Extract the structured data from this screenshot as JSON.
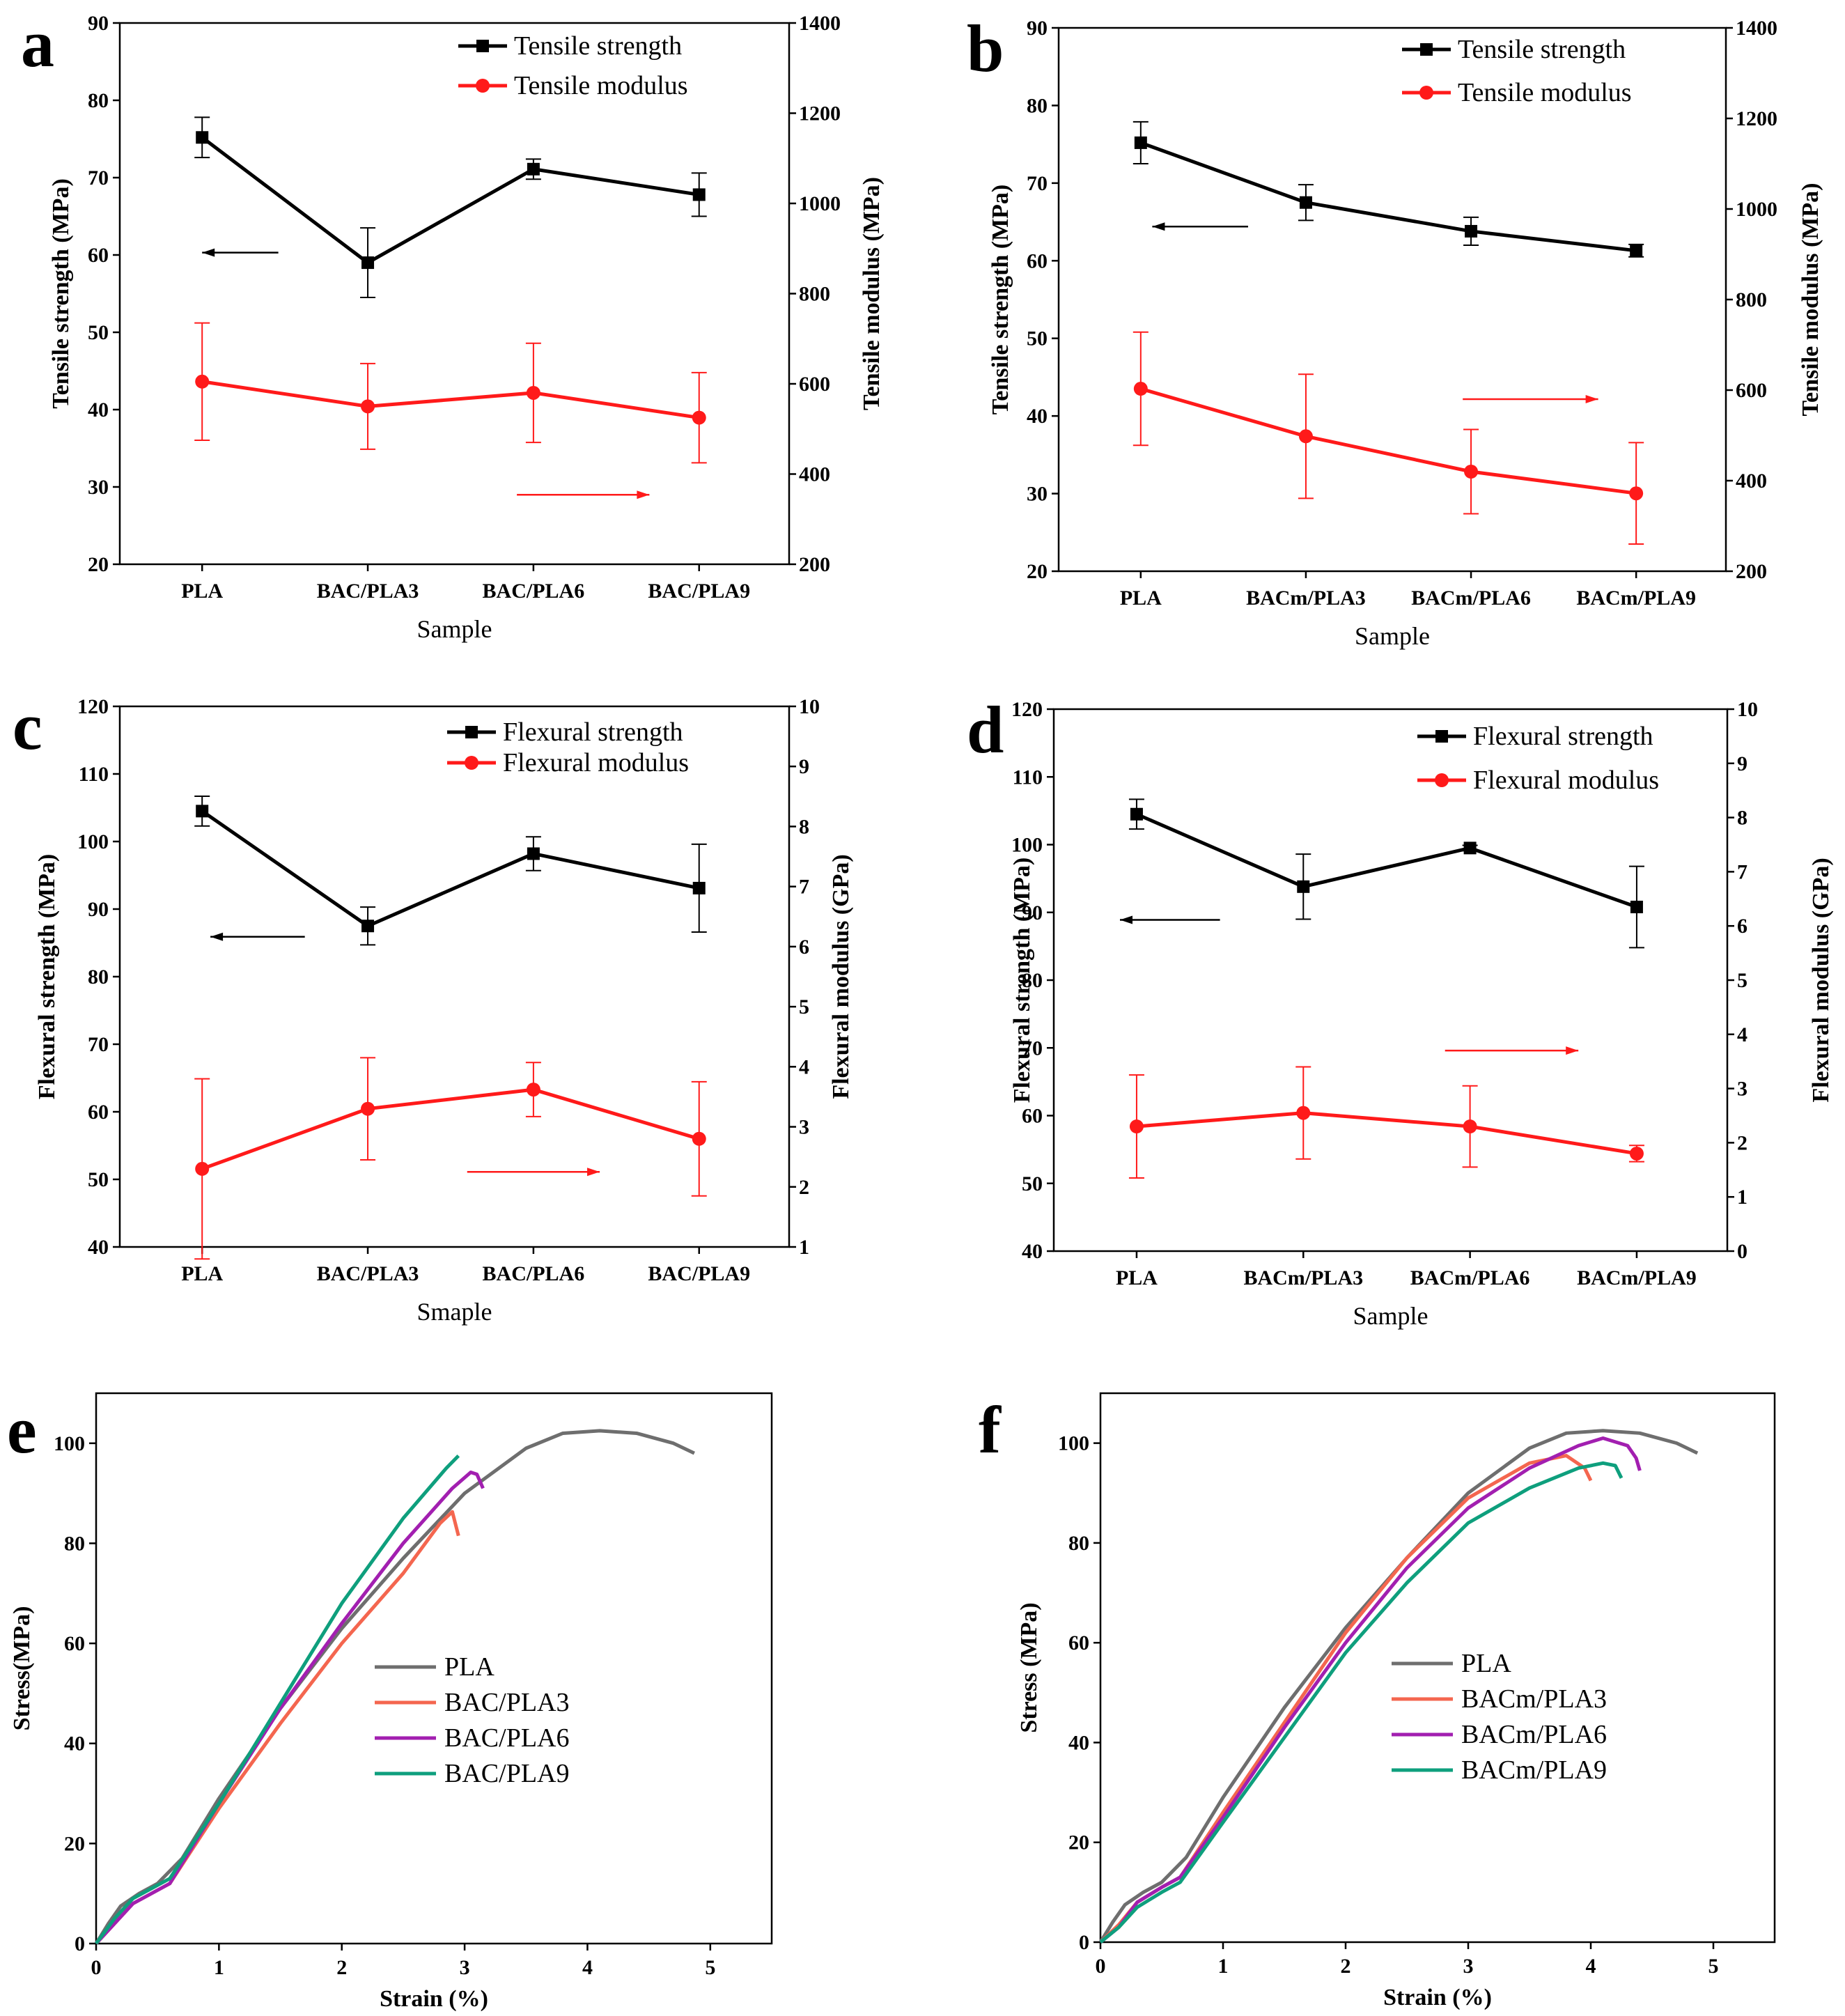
{
  "colors": {
    "black": "#000000",
    "red": "#ff1a1a",
    "gray": "#6e6e6e",
    "orange": "#f4664f",
    "purple": "#a21fb0",
    "green": "#0e9f7d"
  },
  "chart_data": [
    {
      "panel": "a",
      "type": "line",
      "categories": [
        "PLA",
        "BAC/PLA3",
        "BAC/PLA6",
        "BAC/PLA9"
      ],
      "xlabel": "Sample",
      "ylabel": "Tensile strength (MPa)",
      "ylim": [
        20,
        90
      ],
      "yticks": [
        20,
        30,
        40,
        50,
        60,
        70,
        80,
        90
      ],
      "y2label": "Tensile modulus (MPa)",
      "y2lim": [
        200,
        1400
      ],
      "y2ticks": [
        200,
        400,
        600,
        800,
        1000,
        1200,
        1400
      ],
      "series": [
        {
          "name": "Tensile strength",
          "axis": "left",
          "color": "black",
          "marker": "square",
          "values": [
            75.2,
            59.0,
            71.1,
            67.8
          ],
          "errors": [
            2.6,
            4.5,
            1.3,
            2.8
          ]
        },
        {
          "name": "Tensile modulus",
          "axis": "right",
          "color": "red",
          "marker": "circle",
          "values": [
            605,
            550,
            580,
            525
          ],
          "errors": [
            130,
            95,
            110,
            100
          ]
        }
      ],
      "arrows": [
        {
          "dir": "left",
          "y": 60.3,
          "from": 0.46,
          "to": 0.0
        },
        {
          "dir": "right",
          "y2": 354,
          "from": 1.9,
          "to": 2.7
        }
      ]
    },
    {
      "panel": "b",
      "type": "line",
      "categories": [
        "PLA",
        "BACm/PLA3",
        "BACm/PLA6",
        "BACm/PLA9"
      ],
      "xlabel": "Sample",
      "ylabel": "Tensile strength (MPa)",
      "ylim": [
        20,
        90
      ],
      "yticks": [
        20,
        30,
        40,
        50,
        60,
        70,
        80,
        90
      ],
      "y2label": "Tensile modulus (MPa)",
      "y2lim": [
        200,
        1400
      ],
      "y2ticks": [
        200,
        400,
        600,
        800,
        1000,
        1200,
        1400
      ],
      "series": [
        {
          "name": "Tensile strength",
          "axis": "left",
          "color": "black",
          "marker": "square",
          "values": [
            75.2,
            67.5,
            63.8,
            61.3
          ],
          "errors": [
            2.7,
            2.3,
            1.8,
            0.8
          ]
        },
        {
          "name": "Tensile modulus",
          "axis": "right",
          "color": "red",
          "marker": "circle",
          "values": [
            603,
            498,
            420,
            372
          ],
          "errors": [
            125,
            137,
            93,
            112
          ]
        }
      ],
      "arrows": [
        {
          "dir": "left",
          "y": 64.4,
          "from": 0.65,
          "to": 0.07
        },
        {
          "dir": "right",
          "y2": 580,
          "from": 1.95,
          "to": 2.77
        }
      ]
    },
    {
      "panel": "c",
      "type": "line",
      "categories": [
        "PLA",
        "BAC/PLA3",
        "BAC/PLA6",
        "BAC/PLA9"
      ],
      "xlabel": "Smaple",
      "ylabel": "Flexural strength (MPa)",
      "ylim": [
        40,
        120
      ],
      "yticks": [
        40,
        50,
        60,
        70,
        80,
        90,
        100,
        110,
        120
      ],
      "y2label": "Flexural modulus (GPa)",
      "y2lim": [
        1,
        10
      ],
      "y2ticks": [
        1,
        2,
        3,
        4,
        5,
        6,
        7,
        8,
        9,
        10
      ],
      "series": [
        {
          "name": "Flexural strength",
          "axis": "left",
          "color": "black",
          "marker": "square",
          "values": [
            104.5,
            87.5,
            98.2,
            93.1
          ],
          "errors": [
            2.2,
            2.8,
            2.5,
            6.5
          ]
        },
        {
          "name": "Flexural modulus",
          "axis": "right",
          "color": "red",
          "marker": "circle",
          "values": [
            2.3,
            3.3,
            3.62,
            2.8
          ],
          "errors": [
            1.5,
            0.85,
            0.45,
            0.95
          ]
        }
      ],
      "arrows": [
        {
          "dir": "left",
          "y": 85.9,
          "from": 0.62,
          "to": 0.05
        },
        {
          "dir": "right",
          "y2": 2.25,
          "from": 1.6,
          "to": 2.4
        }
      ]
    },
    {
      "panel": "d",
      "type": "line",
      "categories": [
        "PLA",
        "BACm/PLA3",
        "BACm/PLA6",
        "BACm/PLA9"
      ],
      "xlabel": "Sample",
      "ylabel": "Flexural strength (MPa)",
      "ylim": [
        40,
        120
      ],
      "yticks": [
        40,
        50,
        60,
        70,
        80,
        90,
        100,
        110,
        120
      ],
      "y2label": "Flexural modulus (GPa)",
      "y2lim": [
        0,
        10
      ],
      "y2ticks": [
        0,
        1,
        2,
        3,
        4,
        5,
        6,
        7,
        8,
        9,
        10
      ],
      "series": [
        {
          "name": "Flexural strength",
          "axis": "left",
          "color": "black",
          "marker": "square",
          "values": [
            104.5,
            93.8,
            99.5,
            90.8
          ],
          "errors": [
            2.2,
            4.8,
            0.4,
            6.0
          ]
        },
        {
          "name": "Flexural modulus",
          "axis": "right",
          "color": "red",
          "marker": "circle",
          "values": [
            2.3,
            2.55,
            2.3,
            1.8
          ],
          "errors": [
            0.95,
            0.85,
            0.75,
            0.15
          ]
        }
      ],
      "arrows": [
        {
          "dir": "left",
          "y": 88.9,
          "from": 0.5,
          "to": -0.1
        },
        {
          "dir": "right",
          "y2": 3.7,
          "from": 1.85,
          "to": 2.65
        }
      ]
    },
    {
      "panel": "e",
      "type": "line",
      "xlabel": "Strain (%)",
      "ylabel": "Stress(MPa)",
      "xlim": [
        0,
        5.5
      ],
      "xticks": [
        0,
        1,
        2,
        3,
        4,
        5
      ],
      "ylim": [
        0,
        110
      ],
      "yticks": [
        0,
        20,
        40,
        60,
        80,
        100
      ],
      "series": [
        {
          "name": "PLA",
          "color": "gray",
          "x": [
            0,
            0.1,
            0.2,
            0.35,
            0.5,
            0.7,
            1.0,
            1.5,
            2.0,
            2.5,
            3.0,
            3.5,
            3.8,
            4.1,
            4.4,
            4.7,
            4.87
          ],
          "y": [
            0,
            4,
            7.5,
            10,
            12,
            17,
            29,
            47,
            63,
            77,
            90,
            99,
            102,
            102.5,
            102,
            100,
            98
          ]
        },
        {
          "name": "BAC/PLA3",
          "color": "orange",
          "x": [
            0,
            0.15,
            0.3,
            0.45,
            0.6,
            1.0,
            1.5,
            2.0,
            2.5,
            2.8,
            2.9,
            2.95
          ],
          "y": [
            0,
            4,
            8,
            10,
            12,
            27,
            44,
            60,
            74,
            84,
            86.3,
            81.5
          ]
        },
        {
          "name": "BAC/PLA6",
          "color": "purple",
          "x": [
            0,
            0.15,
            0.3,
            0.45,
            0.6,
            1.0,
            1.5,
            2.0,
            2.5,
            2.9,
            3.05,
            3.1,
            3.15
          ],
          "y": [
            0,
            4,
            8,
            10,
            12,
            28,
            47,
            64,
            80,
            91,
            94.2,
            93.8,
            91
          ]
        },
        {
          "name": "BAC/PLA9",
          "color": "green",
          "x": [
            0,
            0.15,
            0.3,
            0.45,
            0.6,
            1.0,
            1.5,
            2.0,
            2.5,
            2.85,
            2.95
          ],
          "y": [
            0,
            5,
            9,
            11,
            13,
            28,
            48,
            68,
            85,
            95,
            97.5
          ]
        }
      ]
    },
    {
      "panel": "f",
      "type": "line",
      "xlabel": "Strain (%)",
      "ylabel": "Stress (MPa)",
      "xlim": [
        0,
        5.5
      ],
      "xticks": [
        0,
        1,
        2,
        3,
        4,
        5
      ],
      "ylim": [
        0,
        110
      ],
      "yticks": [
        0,
        20,
        40,
        60,
        80,
        100
      ],
      "series": [
        {
          "name": "PLA",
          "color": "gray",
          "x": [
            0,
            0.1,
            0.2,
            0.35,
            0.5,
            0.7,
            1.0,
            1.5,
            2.0,
            2.5,
            3.0,
            3.5,
            3.8,
            4.1,
            4.4,
            4.7,
            4.87
          ],
          "y": [
            0,
            4,
            7.5,
            10,
            12,
            17,
            29,
            47,
            63,
            77,
            90,
            99,
            102,
            102.5,
            102,
            100,
            98
          ]
        },
        {
          "name": "BACm/PLA3",
          "color": "orange",
          "x": [
            0,
            0.15,
            0.3,
            0.5,
            0.65,
            1.0,
            1.5,
            2.0,
            2.5,
            3.0,
            3.5,
            3.8,
            3.95,
            4.0
          ],
          "y": [
            0,
            3.5,
            8,
            11,
            13,
            26,
            44,
            62,
            77,
            89,
            96,
            97.5,
            95,
            92.5
          ]
        },
        {
          "name": "BACm/PLA6",
          "color": "purple",
          "x": [
            0,
            0.15,
            0.3,
            0.5,
            0.65,
            1.0,
            1.5,
            2.0,
            2.5,
            3.0,
            3.5,
            3.9,
            4.1,
            4.3,
            4.37,
            4.4
          ],
          "y": [
            0,
            3,
            8,
            11,
            13,
            25,
            43,
            60,
            75,
            87,
            95,
            99.5,
            101,
            99.5,
            97,
            94.5
          ]
        },
        {
          "name": "BACm/PLA9",
          "color": "green",
          "x": [
            0,
            0.15,
            0.3,
            0.5,
            0.65,
            1.0,
            1.5,
            2.0,
            2.5,
            3.0,
            3.5,
            3.9,
            4.1,
            4.2,
            4.25
          ],
          "y": [
            0,
            3,
            7,
            10,
            12,
            24,
            41,
            58,
            72,
            84,
            91,
            95,
            96,
            95.5,
            93
          ]
        }
      ]
    }
  ]
}
